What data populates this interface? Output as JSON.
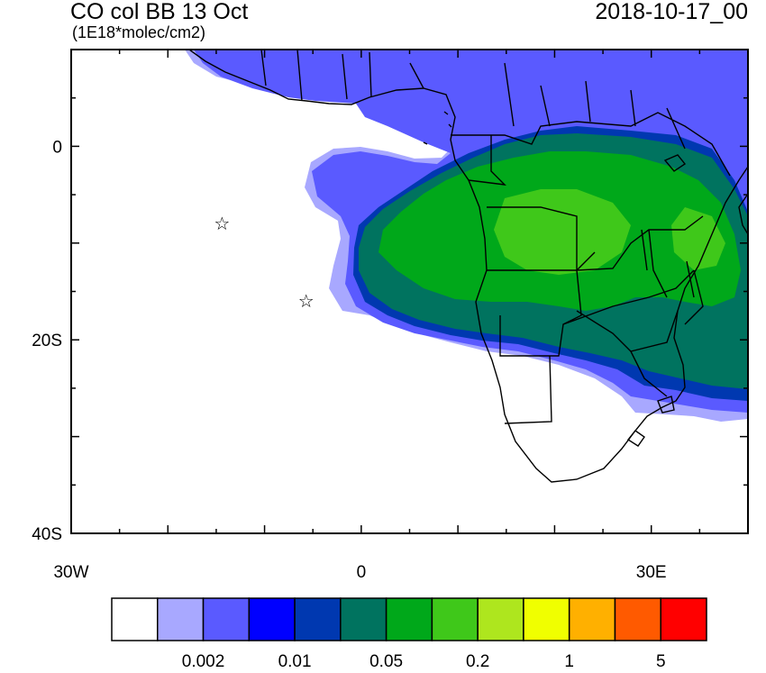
{
  "header": {
    "title": "CO col BB 13 Oct",
    "units": "(1E18*molec/cm2)",
    "datetime": "2018-10-17_00"
  },
  "axes": {
    "lat_ticks": [
      {
        "lat": 0,
        "label": "0"
      },
      {
        "lat": -20,
        "label": "20S"
      },
      {
        "lat": -40,
        "label": "40S"
      }
    ],
    "lon_ticks": [
      {
        "lon": -30,
        "label": "30W"
      },
      {
        "lon": 0,
        "label": "0"
      },
      {
        "lon": 30,
        "label": "30E"
      }
    ],
    "lon_range": [
      -30,
      40
    ],
    "lat_range": [
      -40,
      10
    ]
  },
  "markers": [
    {
      "name": "star-marker-1",
      "lon": -14.4,
      "lat": -7.9,
      "symbol": "☆"
    },
    {
      "name": "star-marker-2",
      "lon": -5.7,
      "lat": -15.9,
      "symbol": "☆"
    }
  ],
  "colorbar": {
    "colors": [
      "#ffffff",
      "#a8a8ff",
      "#5a5aff",
      "#0000ff",
      "#0038b0",
      "#00735f",
      "#00a81a",
      "#3fc81a",
      "#aee61e",
      "#f0ff00",
      "#ffb000",
      "#ff5a00",
      "#ff0000"
    ],
    "labels": [
      "0.002",
      "0.01",
      "0.05",
      "0.2",
      "1",
      "5"
    ]
  }
}
